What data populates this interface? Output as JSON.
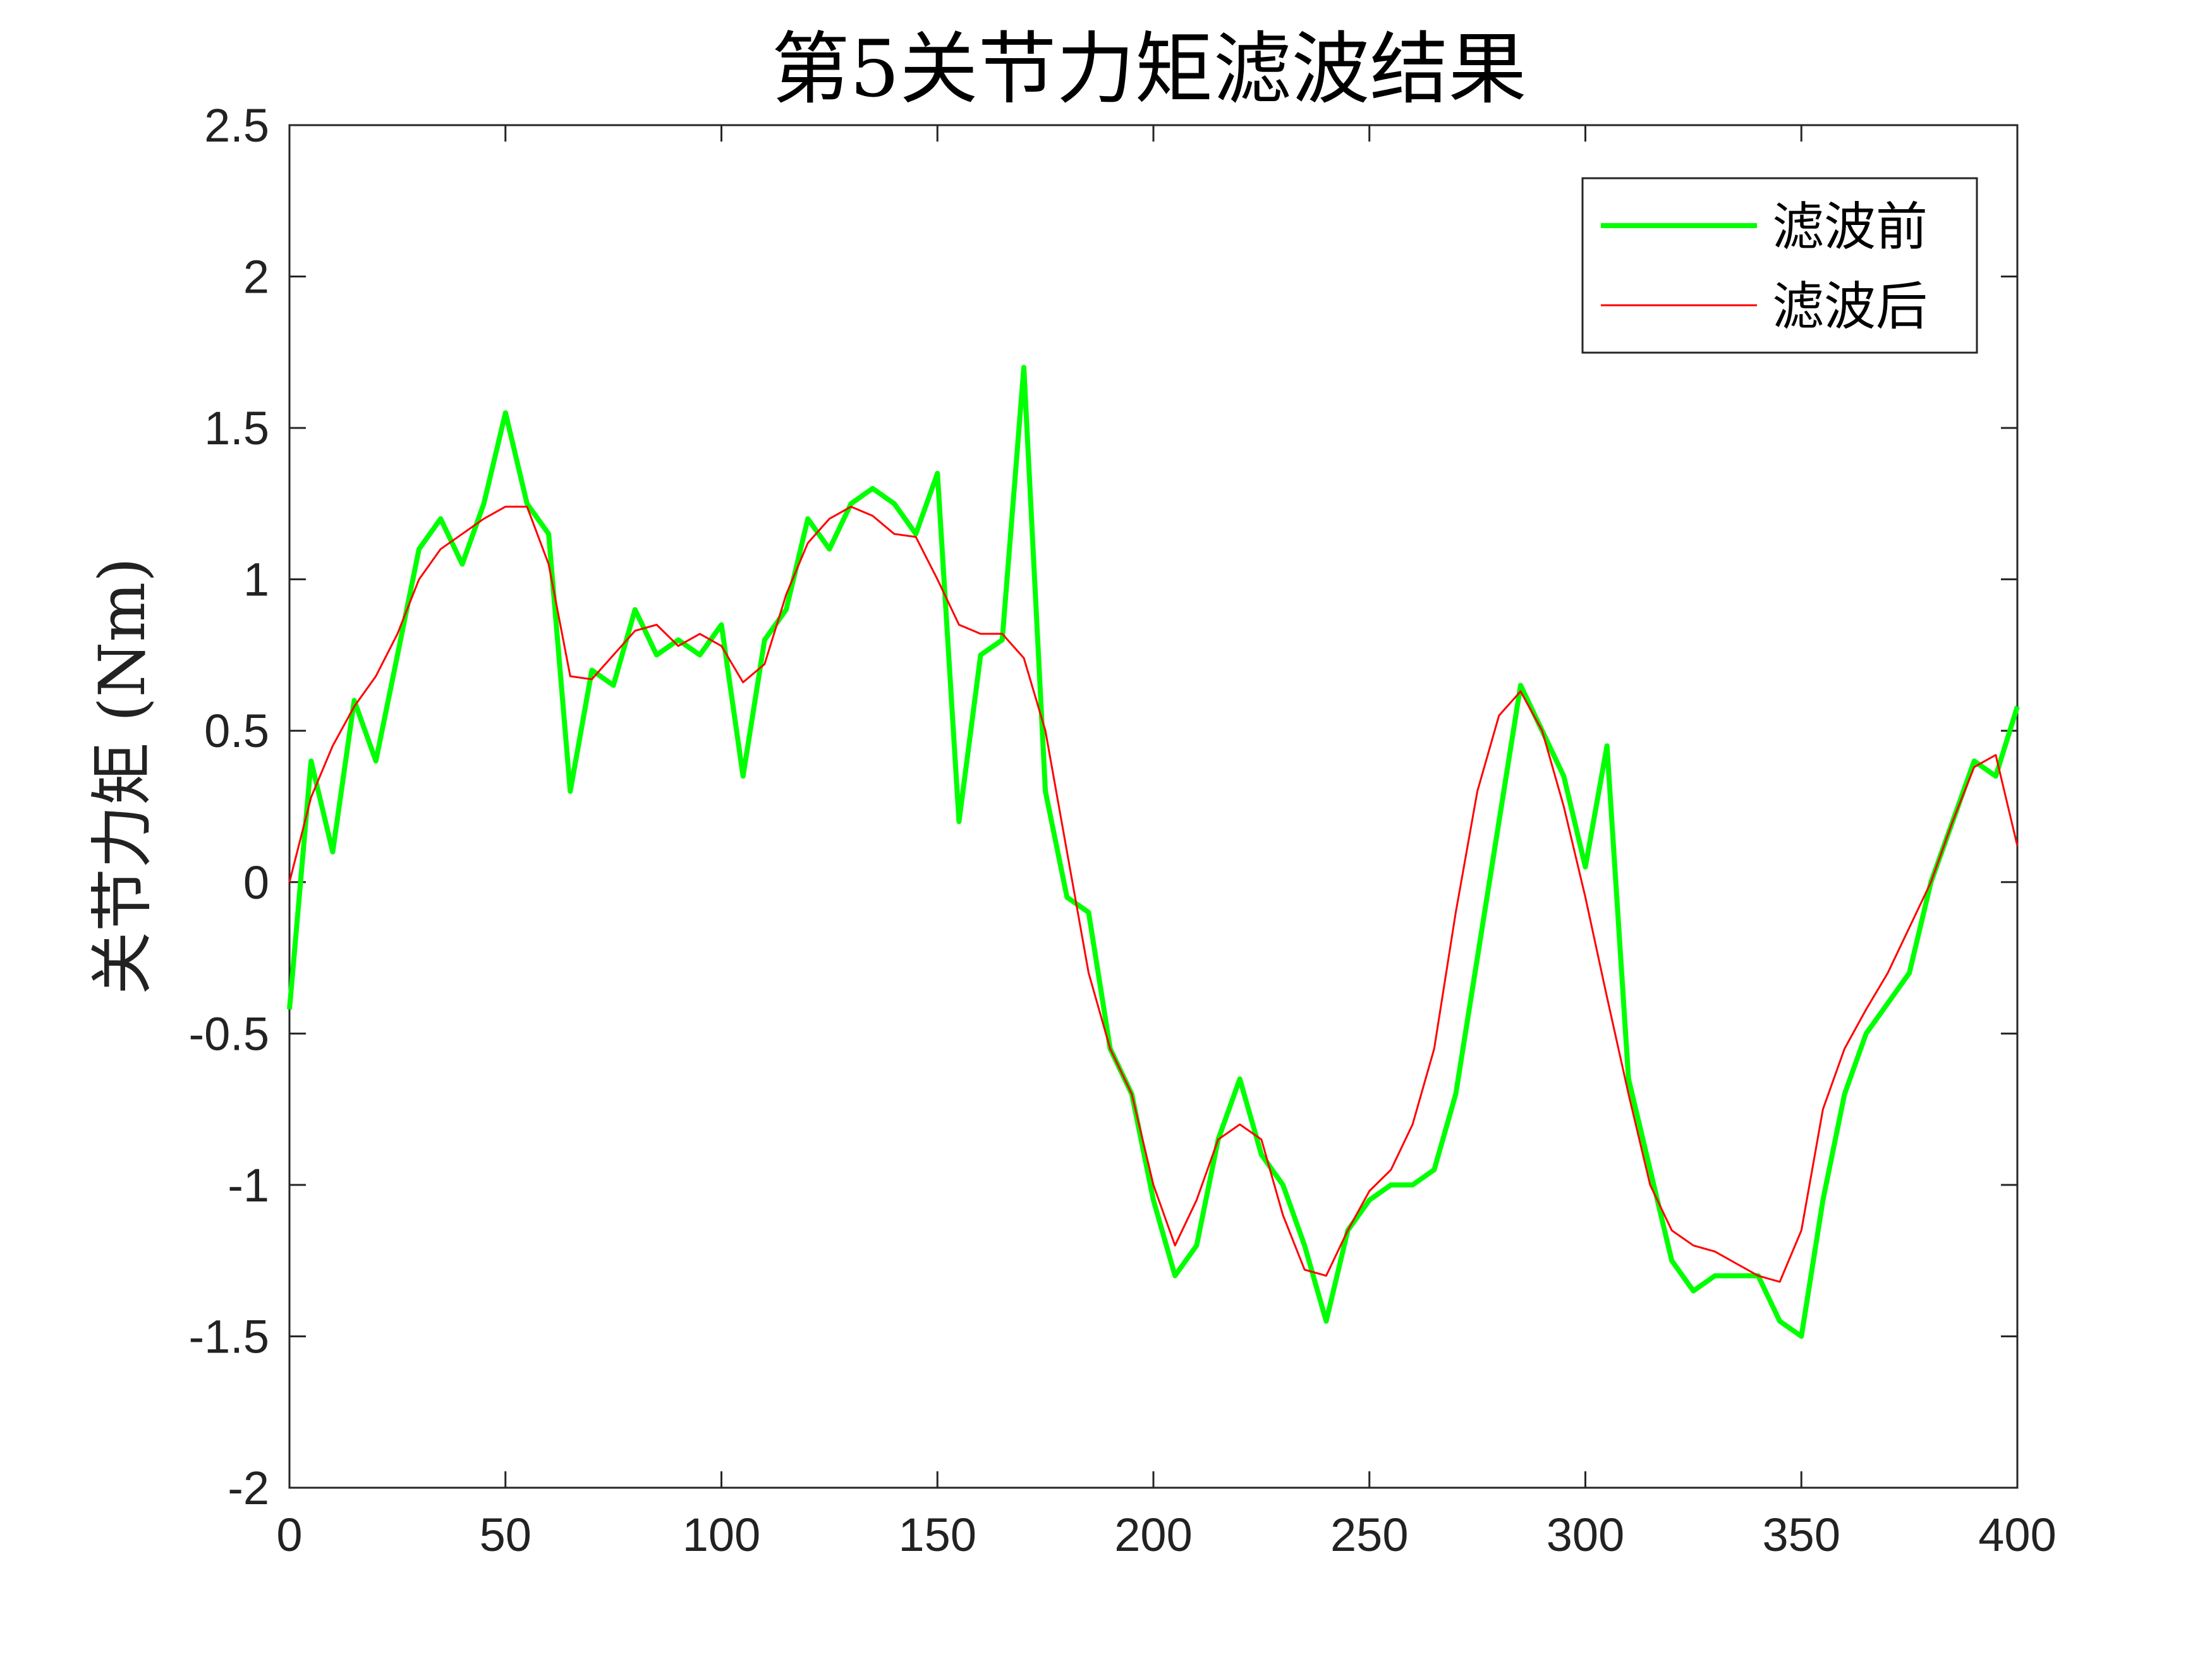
{
  "chart_data": {
    "type": "line",
    "title": "第5关节力矩滤波结果",
    "xlabel": "",
    "ylabel": "关节力矩 (Nm)",
    "xlim": [
      0,
      400
    ],
    "ylim": [
      -2,
      2.5
    ],
    "xticks": [
      0,
      50,
      100,
      150,
      200,
      250,
      300,
      350,
      400
    ],
    "yticks": [
      -2,
      -1.5,
      -1,
      -0.5,
      0,
      0.5,
      1,
      1.5,
      2,
      2.5
    ],
    "grid": false,
    "legend_position": "top-right",
    "series": [
      {
        "name": "滤波前",
        "color": "#00ff00",
        "x": [
          0,
          5,
          10,
          15,
          20,
          25,
          30,
          35,
          40,
          45,
          50,
          55,
          60,
          65,
          70,
          75,
          80,
          85,
          90,
          95,
          100,
          105,
          110,
          115,
          120,
          125,
          130,
          135,
          140,
          145,
          150,
          155,
          160,
          165,
          170,
          175,
          180,
          185,
          190,
          195,
          200,
          205,
          210,
          215,
          220,
          225,
          230,
          235,
          240,
          245,
          250,
          255,
          260,
          265,
          270,
          275,
          280,
          285,
          290,
          295,
          300,
          305,
          310,
          315,
          320,
          325,
          330,
          335,
          340,
          345,
          350,
          355,
          360,
          365,
          370,
          375,
          380,
          385,
          390,
          395,
          400
        ],
        "y": [
          -0.42,
          0.4,
          0.1,
          0.6,
          0.4,
          0.75,
          1.1,
          1.2,
          1.05,
          1.25,
          1.55,
          1.25,
          1.15,
          0.3,
          0.7,
          0.65,
          0.9,
          0.75,
          0.8,
          0.75,
          0.85,
          0.35,
          0.8,
          0.9,
          1.2,
          1.1,
          1.25,
          1.3,
          1.25,
          1.15,
          1.35,
          0.2,
          0.75,
          0.8,
          1.7,
          0.3,
          -0.05,
          -0.1,
          -0.55,
          -0.7,
          -1.05,
          -1.3,
          -1.2,
          -0.85,
          -0.65,
          -0.9,
          -1.0,
          -1.2,
          -1.45,
          -1.15,
          -1.05,
          -1.0,
          -1.0,
          -0.95,
          -0.7,
          -0.25,
          0.2,
          0.65,
          0.5,
          0.35,
          0.05,
          0.45,
          -0.65,
          -0.95,
          -1.25,
          -1.35,
          -1.3,
          -1.3,
          -1.3,
          -1.45,
          -1.5,
          -1.05,
          -0.7,
          -0.5,
          -0.4,
          -0.3,
          0.0,
          0.2,
          0.4,
          0.35,
          0.58
        ]
      },
      {
        "name": "滤波后",
        "color": "#ff0000",
        "x": [
          0,
          5,
          10,
          15,
          20,
          25,
          30,
          35,
          40,
          45,
          50,
          55,
          60,
          65,
          70,
          75,
          80,
          85,
          90,
          95,
          100,
          105,
          110,
          115,
          120,
          125,
          130,
          135,
          140,
          145,
          150,
          155,
          160,
          165,
          170,
          175,
          180,
          185,
          190,
          195,
          200,
          205,
          210,
          215,
          220,
          225,
          230,
          235,
          240,
          245,
          250,
          255,
          260,
          265,
          270,
          275,
          280,
          285,
          290,
          295,
          300,
          305,
          310,
          315,
          320,
          325,
          330,
          335,
          340,
          345,
          350,
          355,
          360,
          365,
          370,
          375,
          380,
          385,
          390,
          395,
          400
        ],
        "y": [
          0.0,
          0.28,
          0.45,
          0.58,
          0.68,
          0.82,
          1.0,
          1.1,
          1.15,
          1.2,
          1.24,
          1.24,
          1.05,
          0.68,
          0.67,
          0.75,
          0.83,
          0.85,
          0.78,
          0.82,
          0.78,
          0.66,
          0.72,
          0.95,
          1.12,
          1.2,
          1.24,
          1.21,
          1.15,
          1.14,
          1.0,
          0.85,
          0.82,
          0.82,
          0.74,
          0.5,
          0.1,
          -0.3,
          -0.55,
          -0.7,
          -1.0,
          -1.2,
          -1.05,
          -0.85,
          -0.8,
          -0.85,
          -1.1,
          -1.28,
          -1.3,
          -1.15,
          -1.02,
          -0.95,
          -0.8,
          -0.55,
          -0.1,
          0.3,
          0.55,
          0.63,
          0.5,
          0.25,
          -0.05,
          -0.38,
          -0.7,
          -1.0,
          -1.15,
          -1.2,
          -1.22,
          -1.26,
          -1.3,
          -1.32,
          -1.15,
          -0.75,
          -0.55,
          -0.42,
          -0.3,
          -0.15,
          0.0,
          0.2,
          0.38,
          0.42,
          0.12
        ]
      }
    ]
  }
}
